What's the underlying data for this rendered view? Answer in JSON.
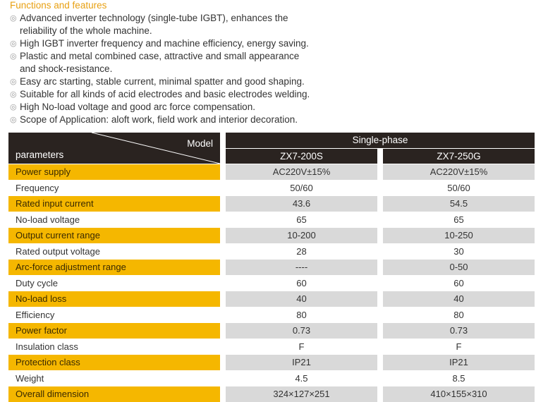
{
  "section_title": "Functions and features",
  "features": [
    {
      "line1": "Advanced inverter technology (single-tube IGBT), enhances the",
      "line2": "reliability of the whole machine."
    },
    {
      "line1": "High IGBT inverter frequency and machine efficiency, energy saving.",
      "line2": ""
    },
    {
      "line1": "Plastic and metal combined case, attractive and small appearance",
      "line2": "and shock-resistance."
    },
    {
      "line1": "Easy arc starting, stable current, minimal spatter and good shaping.",
      "line2": ""
    },
    {
      "line1": "Suitable for all kinds of acid electrodes and basic electrodes welding.",
      "line2": ""
    },
    {
      "line1": "High No-load voltage and good arc force compensation.",
      "line2": ""
    },
    {
      "line1": "Scope of Application: aloft work, field work and interior decoration.",
      "line2": ""
    }
  ],
  "table": {
    "header_model": "Model",
    "header_parameters": "parameters",
    "header_group": "Single-phase",
    "models": [
      "ZX7-200S",
      "ZX7-250G"
    ],
    "rows": [
      {
        "label": "Power supply",
        "v1": "AC220V±15%",
        "v2": "AC220V±15%"
      },
      {
        "label": "Frequency",
        "v1": "50/60",
        "v2": "50/60"
      },
      {
        "label": "Rated input current",
        "v1": "43.6",
        "v2": "54.5"
      },
      {
        "label": "No-load voltage",
        "v1": "65",
        "v2": "65"
      },
      {
        "label": "Output current range",
        "v1": "10-200",
        "v2": "10-250"
      },
      {
        "label": "Rated output voltage",
        "v1": "28",
        "v2": "30"
      },
      {
        "label": "Arc-force adjustment range",
        "v1": "----",
        "v2": "0-50"
      },
      {
        "label": "Duty cycle",
        "v1": "60",
        "v2": "60"
      },
      {
        "label": "No-load loss",
        "v1": "40",
        "v2": "40"
      },
      {
        "label": "Efficiency",
        "v1": "80",
        "v2": "80"
      },
      {
        "label": "Power factor",
        "v1": "0.73",
        "v2": "0.73"
      },
      {
        "label": "Insulation class",
        "v1": "F",
        "v2": "F"
      },
      {
        "label": "Protection class",
        "v1": "IP21",
        "v2": "IP21"
      },
      {
        "label": "Weight",
        "v1": "4.5",
        "v2": "8.5"
      },
      {
        "label": "Overall dimension",
        "v1": "324×127×251",
        "v2": "410×155×310"
      }
    ]
  },
  "colors": {
    "accent": "#f5b700",
    "header": "#2a2320",
    "title": "#e8a012",
    "alt_cell": "#d9d9d9"
  }
}
